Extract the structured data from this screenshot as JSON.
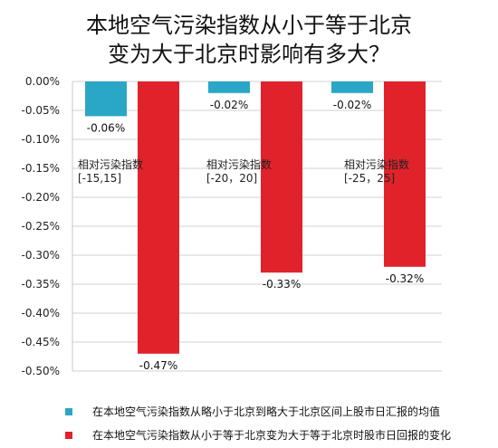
{
  "title_line1": "本地空气污染指数从小于等于北京",
  "title_line2": "变为大于北京时影响有多大？",
  "chart_data": {
    "type": "bar",
    "title": "本地空气污染指数从小于等于北京变为大于北京时影响有多大？",
    "categories": [
      "[-15,15]",
      "[-20，20]",
      "[-25，25]"
    ],
    "group_label_prefix": "相对污染指数",
    "series": [
      {
        "name": "在本地空气污染指数从略小于北京到略大于北京区间上股市日汇报的均值",
        "color": "#2aa7c6",
        "values": [
          -0.06,
          -0.02,
          -0.02
        ],
        "labels": [
          "-0.06%",
          "-0.02%",
          "-0.02%"
        ]
      },
      {
        "name": "在本地空气污染指数从小于等于北京变为大于等于北京时股市日回报的变化",
        "color": "#e0222b",
        "values": [
          -0.47,
          -0.33,
          -0.32
        ],
        "labels": [
          "-0.47%",
          "-0.33%",
          "-0.32%"
        ]
      }
    ],
    "ylim": [
      -0.5,
      0.0
    ],
    "yticks": [
      "0.00%",
      "-0.05%",
      "-0.10%",
      "-0.15%",
      "-0.20%",
      "-0.25%",
      "-0.30%",
      "-0.35%",
      "-0.40%",
      "-0.45%",
      "-0.50%"
    ],
    "grid": true,
    "legend_position": "bottom"
  }
}
